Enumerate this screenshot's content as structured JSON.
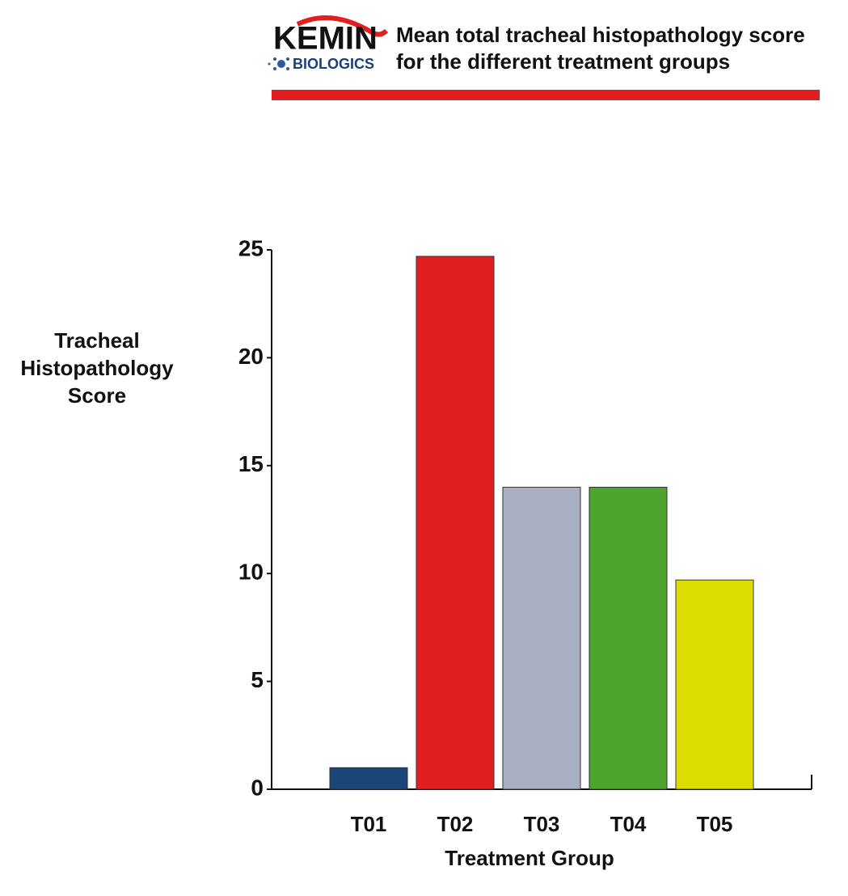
{
  "logo": {
    "name": "KEMIN",
    "sub": "BIOLOGICS"
  },
  "chart_data": {
    "type": "bar",
    "title": "Mean total tracheal histopathology score for the different treatment groups",
    "x_label": "Treatment Group",
    "y_label": "Tracheal Histopathology Score",
    "categories": [
      "T01",
      "T02",
      "T03",
      "T04",
      "T05"
    ],
    "values": [
      1,
      24.7,
      14,
      14,
      9.7
    ],
    "colors": [
      "#1b4577",
      "#e02020",
      "#a9afc2",
      "#4da42f",
      "#dcdc00"
    ],
    "ylim": [
      0,
      25
    ],
    "yticks": [
      0,
      5,
      10,
      15,
      20,
      25
    ],
    "grid": false
  }
}
